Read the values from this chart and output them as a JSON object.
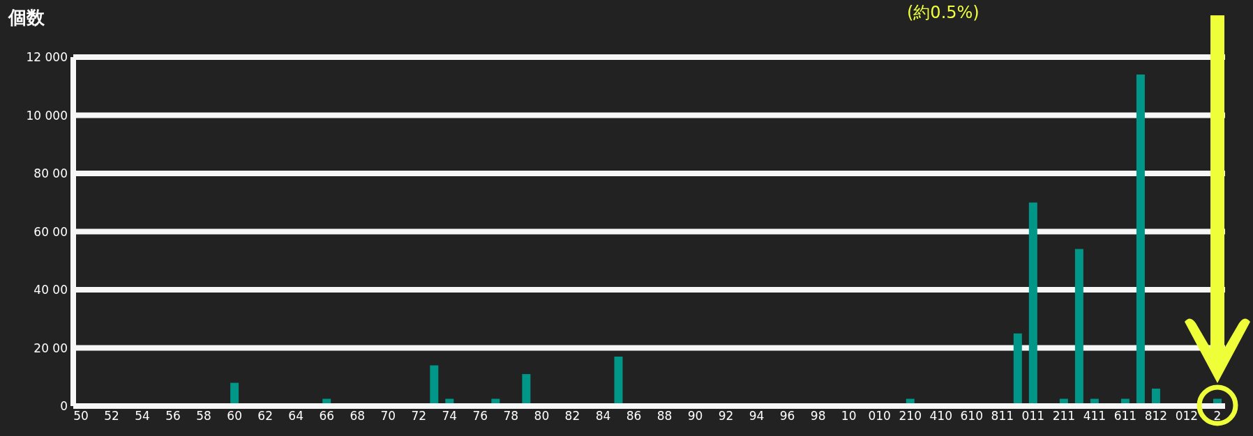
{
  "chart_data": {
    "type": "bar",
    "ylabel": "個数",
    "annotations": [
      "(約0.5%)"
    ],
    "categories": [
      "50",
      null,
      "52",
      null,
      "54",
      null,
      "56",
      null,
      "58",
      null,
      "60",
      null,
      "62",
      null,
      "64",
      null,
      "66",
      null,
      "68",
      null,
      "70",
      null,
      "72",
      null,
      "74",
      null,
      "76",
      null,
      "78",
      null,
      "80",
      null,
      "82",
      null,
      "84",
      null,
      "86",
      null,
      "88",
      null,
      "90",
      null,
      "92",
      null,
      "94",
      null,
      "96",
      null,
      "98",
      null,
      "10",
      null,
      "010",
      null,
      "210",
      null,
      "410",
      null,
      "610",
      null,
      "811",
      null,
      "011",
      null,
      "211",
      null,
      "411",
      null,
      "611",
      null,
      "812",
      null,
      "012",
      null,
      "2"
    ],
    "values": [
      0,
      0,
      0,
      0,
      0,
      0,
      0,
      0,
      0,
      0,
      800,
      0,
      0,
      0,
      0,
      0,
      250,
      0,
      0,
      0,
      0,
      0,
      0,
      1400,
      250,
      0,
      0,
      250,
      0,
      1100,
      0,
      0,
      0,
      0,
      0,
      1700,
      0,
      0,
      0,
      0,
      0,
      0,
      0,
      0,
      0,
      0,
      0,
      0,
      0,
      0,
      0,
      0,
      0,
      0,
      250,
      0,
      0,
      0,
      0,
      0,
      0,
      2500,
      7000,
      0,
      250,
      5400,
      250,
      0,
      250,
      11400,
      600,
      0,
      0,
      0,
      250
    ],
    "color": "#009688",
    "ylim": [
      0,
      12000
    ],
    "yticks": [
      0,
      {
        "value": 2000,
        "label": "20 00"
      },
      {
        "value": 4000,
        "label": "40 00"
      },
      {
        "value": 6000,
        "label": "60 00"
      },
      {
        "value": 8000,
        "label": "80 00"
      },
      {
        "value": 10000,
        "label": "10 000"
      },
      {
        "value": 12000,
        "label": "12 000"
      }
    ],
    "grid": "y"
  }
}
